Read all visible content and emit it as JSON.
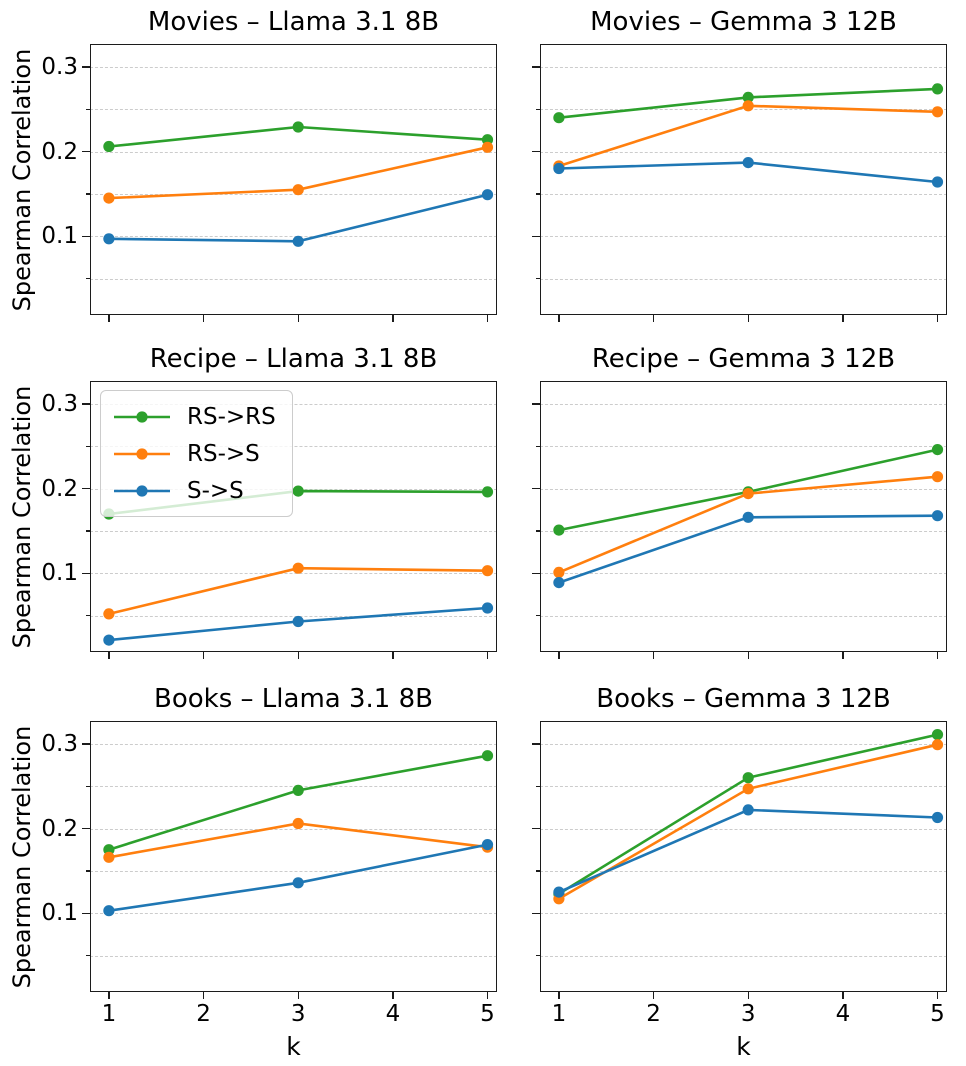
{
  "figure": {
    "background": "#ffffff",
    "ylabel": "Spearman Correlation",
    "xlabel": "k",
    "series_colors": {
      "RS->RS": "#2ca02c",
      "RS->S": "#ff7f0e",
      "S->S": "#1f77b4"
    },
    "legend": {
      "labels": [
        "RS->RS",
        "RS->S",
        "S->S"
      ],
      "location": "upper-left",
      "shown_on_subplot": "Recipe – Llama 3.1 8B"
    }
  },
  "chart_data": [
    {
      "type": "line",
      "title": "Movies – Llama 3.1 8B",
      "x": [
        1,
        3,
        5
      ],
      "xticks": [
        1,
        2,
        3,
        4,
        5
      ],
      "yticks": [
        0.1,
        0.2,
        0.3
      ],
      "grid_values": [
        0.05,
        0.1,
        0.15,
        0.2,
        0.25,
        0.3
      ],
      "xlim": [
        0.8,
        5.1
      ],
      "ylim": [
        0.007,
        0.327
      ],
      "xlabel": "",
      "ylabel": "Spearman Correlation",
      "legend": false,
      "series": [
        {
          "name": "RS->RS",
          "color": "#2ca02c",
          "values": [
            0.206,
            0.229,
            0.214
          ]
        },
        {
          "name": "RS->S",
          "color": "#ff7f0e",
          "values": [
            0.145,
            0.155,
            0.205
          ]
        },
        {
          "name": "S->S",
          "color": "#1f77b4",
          "values": [
            0.097,
            0.094,
            0.149
          ]
        }
      ]
    },
    {
      "type": "line",
      "title": "Movies – Gemma 3 12B",
      "x": [
        1,
        3,
        5
      ],
      "xticks": [
        1,
        2,
        3,
        4,
        5
      ],
      "yticks": [
        0.1,
        0.2,
        0.3
      ],
      "grid_values": [
        0.05,
        0.1,
        0.15,
        0.2,
        0.25,
        0.3
      ],
      "xlim": [
        0.8,
        5.1
      ],
      "ylim": [
        0.007,
        0.327
      ],
      "xlabel": "",
      "ylabel": "",
      "legend": false,
      "series": [
        {
          "name": "RS->RS",
          "color": "#2ca02c",
          "values": [
            0.24,
            0.264,
            0.274
          ]
        },
        {
          "name": "RS->S",
          "color": "#ff7f0e",
          "values": [
            0.183,
            0.254,
            0.247
          ]
        },
        {
          "name": "S->S",
          "color": "#1f77b4",
          "values": [
            0.18,
            0.187,
            0.164
          ]
        }
      ]
    },
    {
      "type": "line",
      "title": "Recipe – Llama 3.1 8B",
      "x": [
        1,
        3,
        5
      ],
      "xticks": [
        1,
        2,
        3,
        4,
        5
      ],
      "yticks": [
        0.1,
        0.2,
        0.3
      ],
      "grid_values": [
        0.05,
        0.1,
        0.15,
        0.2,
        0.25,
        0.3
      ],
      "xlim": [
        0.8,
        5.1
      ],
      "ylim": [
        0.007,
        0.327
      ],
      "xlabel": "",
      "ylabel": "Spearman Correlation",
      "legend": true,
      "series": [
        {
          "name": "RS->RS",
          "color": "#2ca02c",
          "values": [
            0.17,
            0.197,
            0.196
          ]
        },
        {
          "name": "RS->S",
          "color": "#ff7f0e",
          "values": [
            0.052,
            0.106,
            0.103
          ]
        },
        {
          "name": "S->S",
          "color": "#1f77b4",
          "values": [
            0.021,
            0.043,
            0.059
          ]
        }
      ]
    },
    {
      "type": "line",
      "title": "Recipe – Gemma 3 12B",
      "x": [
        1,
        3,
        5
      ],
      "xticks": [
        1,
        2,
        3,
        4,
        5
      ],
      "yticks": [
        0.1,
        0.2,
        0.3
      ],
      "grid_values": [
        0.05,
        0.1,
        0.15,
        0.2,
        0.25,
        0.3
      ],
      "xlim": [
        0.8,
        5.1
      ],
      "ylim": [
        0.007,
        0.327
      ],
      "xlabel": "",
      "ylabel": "",
      "legend": false,
      "series": [
        {
          "name": "RS->RS",
          "color": "#2ca02c",
          "values": [
            0.151,
            0.196,
            0.246
          ]
        },
        {
          "name": "RS->S",
          "color": "#ff7f0e",
          "values": [
            0.101,
            0.194,
            0.214
          ]
        },
        {
          "name": "S->S",
          "color": "#1f77b4",
          "values": [
            0.089,
            0.166,
            0.168
          ]
        }
      ]
    },
    {
      "type": "line",
      "title": "Books – Llama 3.1 8B",
      "x": [
        1,
        3,
        5
      ],
      "xticks": [
        1,
        2,
        3,
        4,
        5
      ],
      "yticks": [
        0.1,
        0.2,
        0.3
      ],
      "grid_values": [
        0.05,
        0.1,
        0.15,
        0.2,
        0.25,
        0.3
      ],
      "xlim": [
        0.8,
        5.1
      ],
      "ylim": [
        0.007,
        0.327
      ],
      "xlabel": "k",
      "ylabel": "Spearman Correlation",
      "legend": false,
      "series": [
        {
          "name": "RS->RS",
          "color": "#2ca02c",
          "values": [
            0.175,
            0.245,
            0.286
          ]
        },
        {
          "name": "RS->S",
          "color": "#ff7f0e",
          "values": [
            0.166,
            0.206,
            0.178
          ]
        },
        {
          "name": "S->S",
          "color": "#1f77b4",
          "values": [
            0.103,
            0.136,
            0.181
          ]
        }
      ]
    },
    {
      "type": "line",
      "title": "Books – Gemma 3 12B",
      "x": [
        1,
        3,
        5
      ],
      "xticks": [
        1,
        2,
        3,
        4,
        5
      ],
      "yticks": [
        0.1,
        0.2,
        0.3
      ],
      "grid_values": [
        0.05,
        0.1,
        0.15,
        0.2,
        0.25,
        0.3
      ],
      "xlim": [
        0.8,
        5.1
      ],
      "ylim": [
        0.007,
        0.327
      ],
      "xlabel": "k",
      "ylabel": "",
      "legend": false,
      "series": [
        {
          "name": "RS->RS",
          "color": "#2ca02c",
          "values": [
            0.123,
            0.26,
            0.311
          ]
        },
        {
          "name": "RS->S",
          "color": "#ff7f0e",
          "values": [
            0.117,
            0.247,
            0.299
          ]
        },
        {
          "name": "S->S",
          "color": "#1f77b4",
          "values": [
            0.125,
            0.222,
            0.213
          ]
        }
      ]
    }
  ]
}
